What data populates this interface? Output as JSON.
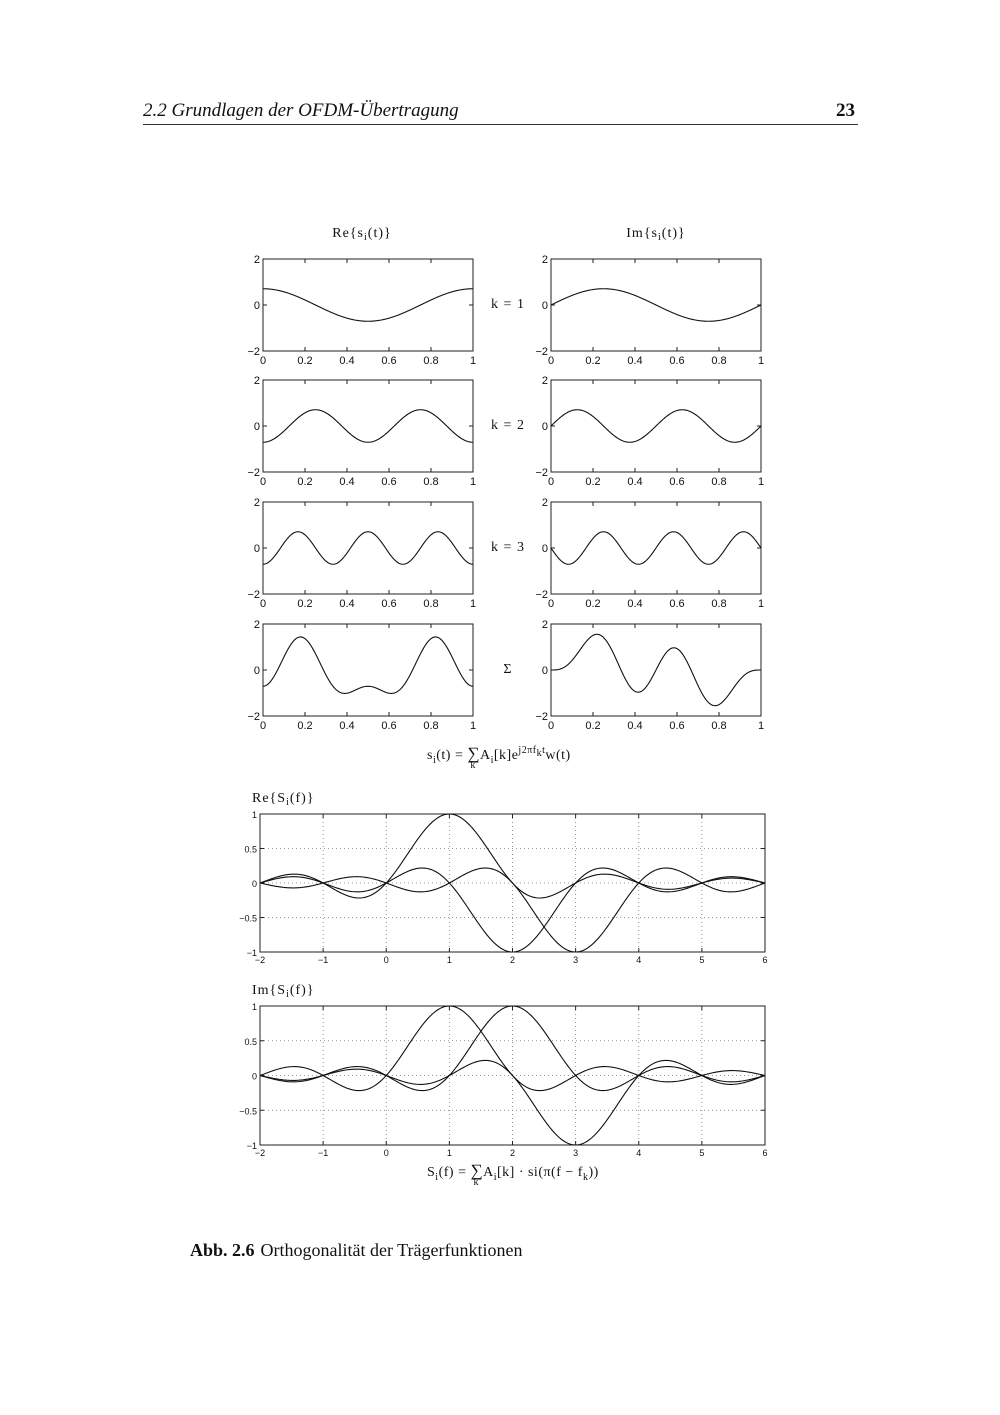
{
  "header": {
    "title": "2.2  Grundlagen der OFDM-Übertragung",
    "page_number": "23"
  },
  "caption": {
    "label": "Abb. 2.6",
    "text": "Orthogonalität der Trägerfunktionen"
  },
  "formulas": {
    "time": {
      "lhs": "s",
      "lhs_sub": "i",
      "lhs_arg": "(t)  =  ",
      "sum": "∑",
      "sum_sub": "k",
      "a": "A",
      "a_sub": "i",
      "a_arg": "[k]e",
      "exp": "j2πf",
      "exp_sub": "k",
      "exp_tail": "t",
      "tail": "w(t)"
    },
    "freq": {
      "lhs": "S",
      "lhs_sub": "i",
      "lhs_arg": "(f)  =  ",
      "sum": "∑",
      "sum_sub": "k",
      "a": "A",
      "a_sub": "i",
      "tail": "[k] · si(π(f − f",
      "tail_sub": "k",
      "tail_end": "))"
    }
  },
  "chart_data": [
    {
      "type": "line",
      "title_left": "Re{s_i(t)}",
      "title_right": "Im{s_i(t)}",
      "xlim": [
        0,
        1
      ],
      "ylim": [
        -2,
        2
      ],
      "xticks": [
        "0",
        "0.2",
        "0.4",
        "0.6",
        "0.8",
        "1"
      ],
      "yticks": [
        "2",
        "0",
        "−2"
      ],
      "grid": false,
      "rows": [
        {
          "label": "k = 1",
          "re": [
            {
              "amp": 0.7071,
              "harmonic": 1,
              "func": "cos"
            }
          ],
          "im": [
            {
              "amp": 0.7071,
              "harmonic": 1,
              "func": "sin"
            }
          ]
        },
        {
          "label": "k = 2",
          "re": [
            {
              "amp": -0.7071,
              "harmonic": 2,
              "func": "cos"
            }
          ],
          "im": [
            {
              "amp": 0.7071,
              "harmonic": 2,
              "func": "sin"
            }
          ]
        },
        {
          "label": "k = 3",
          "re": [
            {
              "amp": -0.7071,
              "harmonic": 3,
              "func": "cos"
            }
          ],
          "im": [
            {
              "amp": -0.7071,
              "harmonic": 3,
              "func": "sin"
            }
          ]
        },
        {
          "label": "Σ",
          "re": [
            {
              "amp": 0.7071,
              "harmonic": 1,
              "func": "cos"
            },
            {
              "amp": -0.7071,
              "harmonic": 2,
              "func": "cos"
            },
            {
              "amp": -0.7071,
              "harmonic": 3,
              "func": "cos"
            }
          ],
          "im": [
            {
              "amp": 0.7071,
              "harmonic": 1,
              "func": "sin"
            },
            {
              "amp": 0.7071,
              "harmonic": 2,
              "func": "sin"
            },
            {
              "amp": -0.7071,
              "harmonic": 3,
              "func": "sin"
            }
          ]
        }
      ]
    },
    {
      "type": "line",
      "title": "Re{S_i(f)}",
      "xlim": [
        -2,
        6
      ],
      "ylim": [
        -1,
        1
      ],
      "xticks": [
        "−2",
        "−1",
        "0",
        "1",
        "2",
        "3",
        "4",
        "5",
        "6"
      ],
      "yticks": [
        "1",
        "0.5",
        "0",
        "−0.5",
        "−1"
      ],
      "grid": true,
      "series": [
        {
          "amp": 1,
          "center": 1
        },
        {
          "amp": -1,
          "center": 2
        },
        {
          "amp": -1,
          "center": 3
        }
      ]
    },
    {
      "type": "line",
      "title": "Im{S_i(f)}",
      "xlim": [
        -2,
        6
      ],
      "ylim": [
        -1,
        1
      ],
      "xticks": [
        "−2",
        "−1",
        "0",
        "1",
        "2",
        "3",
        "4",
        "5",
        "6"
      ],
      "yticks": [
        "1",
        "0.5",
        "0",
        "−0.5",
        "−1"
      ],
      "grid": true,
      "series": [
        {
          "amp": 1,
          "center": 1
        },
        {
          "amp": 1,
          "center": 2
        },
        {
          "amp": -1,
          "center": 3
        }
      ]
    }
  ]
}
